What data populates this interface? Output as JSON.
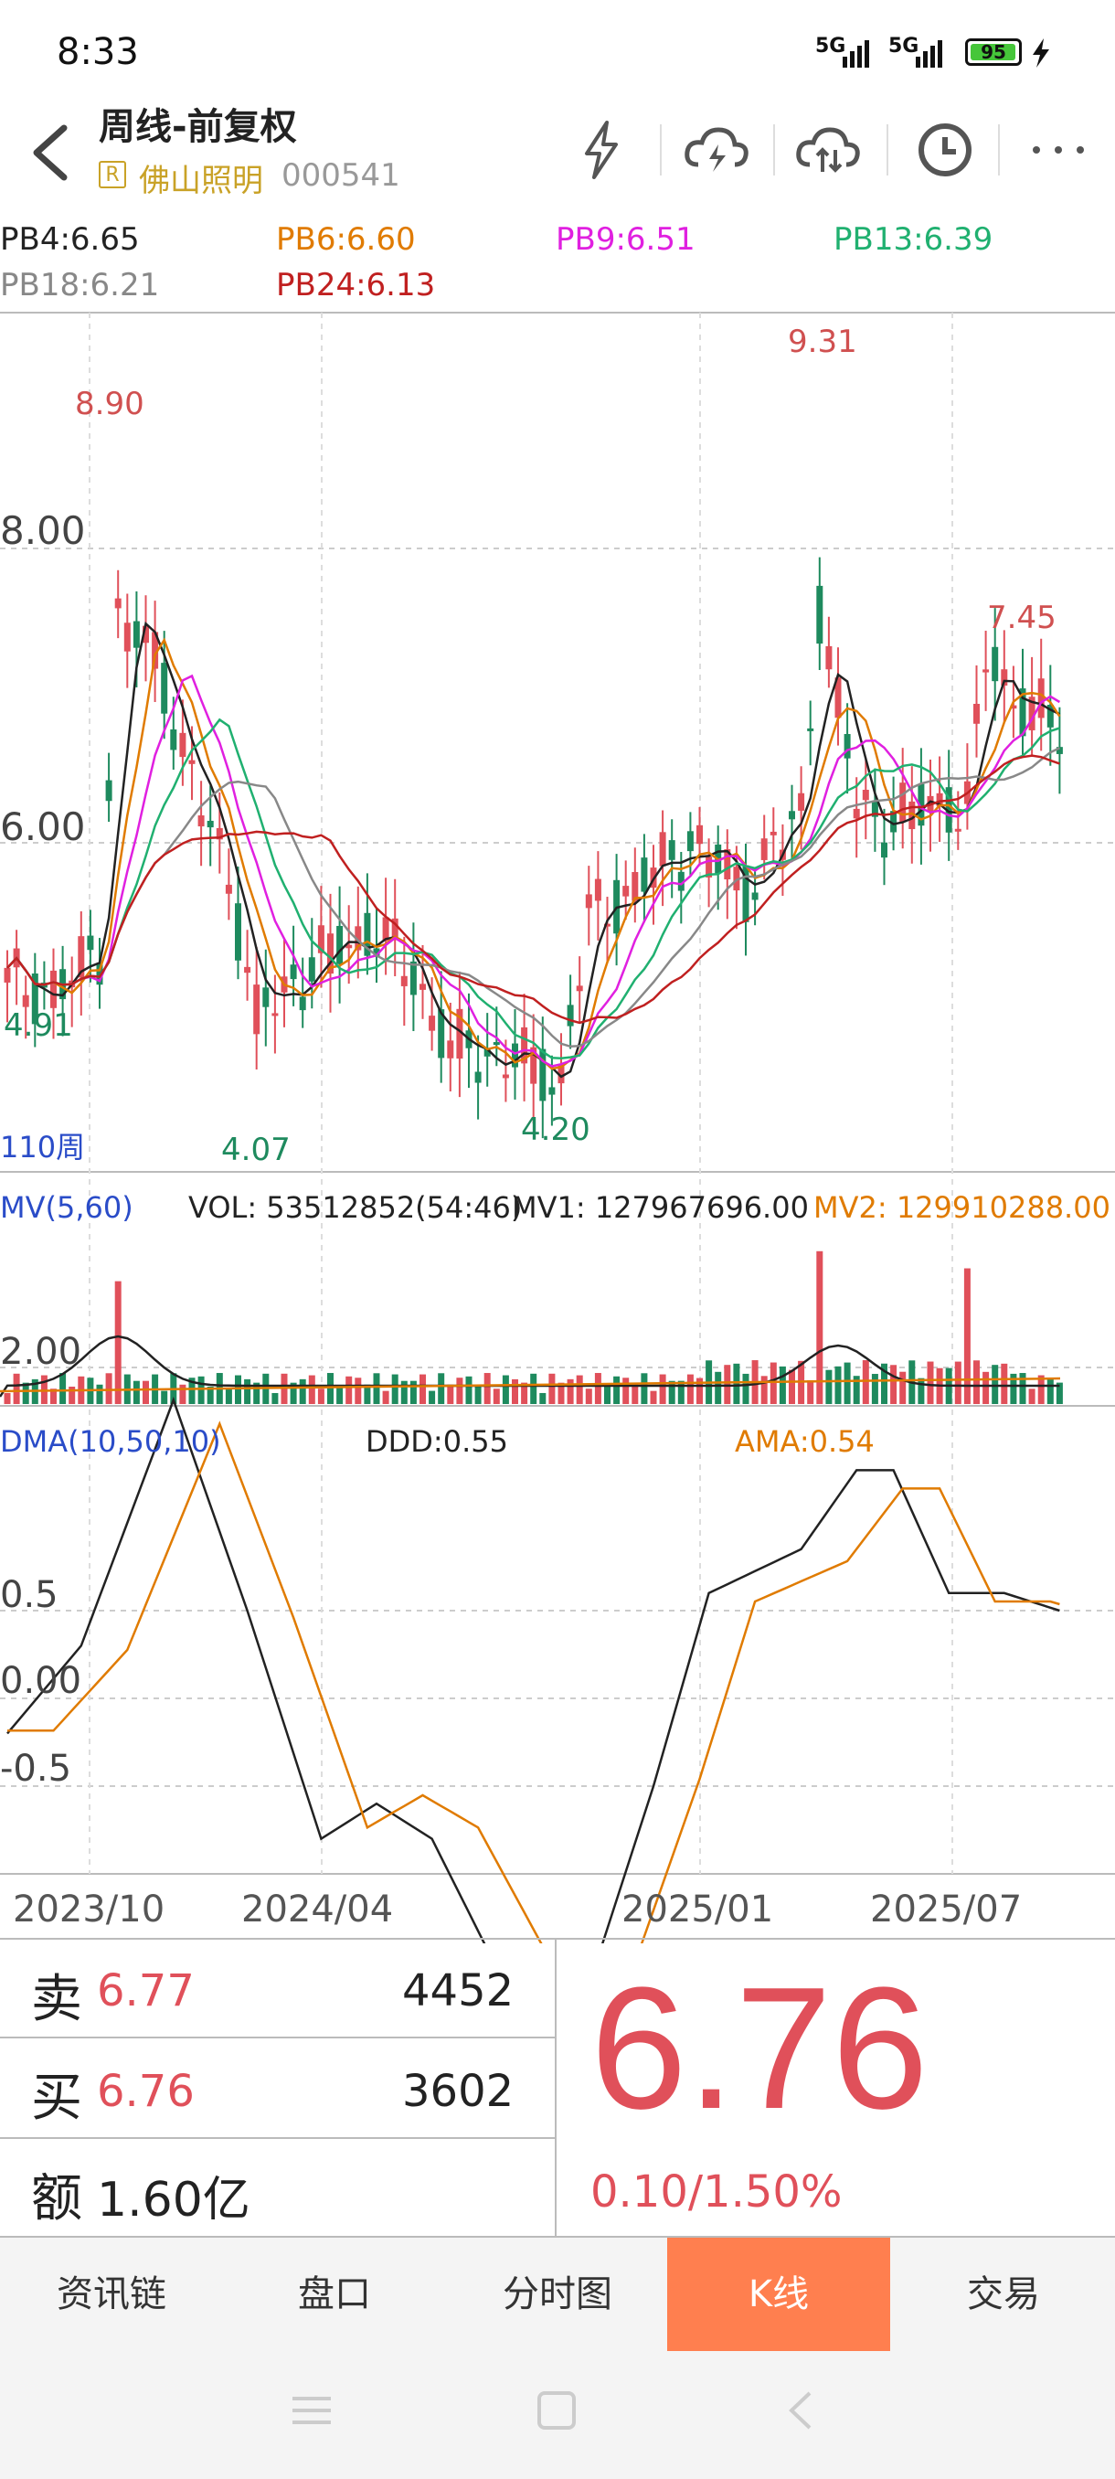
{
  "status": {
    "time": "8:33",
    "battery": "95",
    "battery_level": 0.95,
    "signal1": "5G",
    "signal2": "5G"
  },
  "header": {
    "title": "周线-前复权",
    "badge": "R",
    "stock_name": "佛山照明",
    "stock_code": "000541",
    "icons": [
      "flash-icon",
      "cloud-lightning-icon",
      "cloud-sync-icon",
      "clock-icon",
      "more-icon"
    ]
  },
  "ma_legend": [
    {
      "label": "PB4:6.65",
      "color": "#222222"
    },
    {
      "label": "PB6:6.60",
      "color": "#e07b00"
    },
    {
      "label": "PB9:6.51",
      "color": "#e020e0"
    },
    {
      "label": "PB13:6.39",
      "color": "#20b070"
    },
    {
      "label": "PB18:6.21",
      "color": "#888888"
    },
    {
      "label": "PB24:6.13",
      "color": "#c02020"
    }
  ],
  "colors": {
    "up": "#e0505a",
    "down": "#1e8a5e",
    "ma": "#222222",
    "ama": "#e07b00"
  },
  "main_chart": {
    "y_ticks": [
      "8.00",
      "6.00"
    ],
    "annotations": [
      "8.90",
      "9.31",
      "7.45",
      "4.91",
      "4.07",
      "4.20"
    ],
    "period_label": "110周"
  },
  "volume": {
    "label": "MV(5,60)",
    "vol": "VOL: 53512852(54:46)",
    "mv1": "MV1: 127967696.00",
    "mv2": "MV2: 129910288.00",
    "y_tick": "2.00"
  },
  "dma": {
    "label": "DMA(10,50,10)",
    "ddd": "DDD:0.55",
    "ama": "AMA:0.54",
    "y_ticks": [
      "0.5",
      "0.00",
      "-0.5"
    ]
  },
  "x_axis": [
    "2023/10",
    "2024/04",
    "2025/01",
    "2025/07"
  ],
  "orders": {
    "sell_label": "卖",
    "sell_price": "6.77",
    "sell_qty": "4452",
    "buy_label": "买",
    "buy_price": "6.76",
    "buy_qty": "3602",
    "amount_label": "额",
    "amount": "1.60亿"
  },
  "price": {
    "last": "6.76",
    "change": "0.10/1.50%"
  },
  "tabs": [
    "资讯链",
    "盘口",
    "分时图",
    "K线",
    "交易"
  ],
  "nav": [
    "menu-icon",
    "home-icon",
    "back-nav-icon"
  ]
}
